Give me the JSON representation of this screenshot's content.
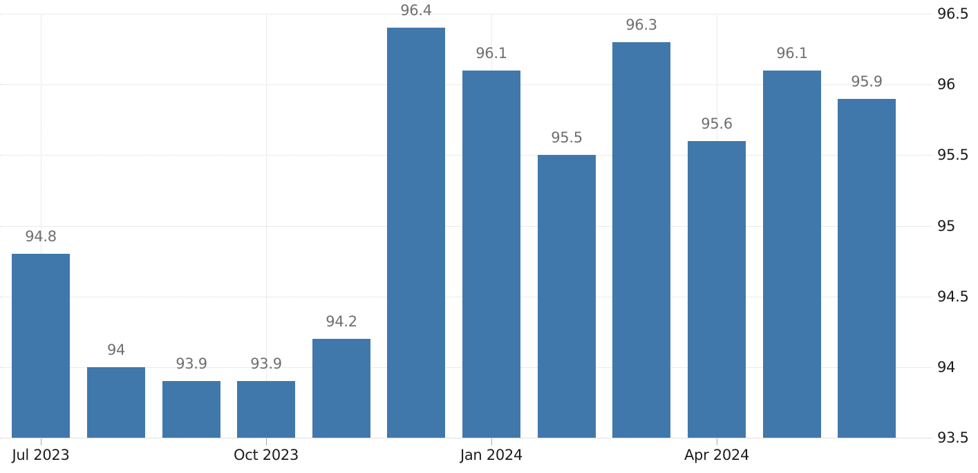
{
  "chart_data": {
    "type": "bar",
    "values": [
      94.8,
      94,
      93.9,
      93.9,
      94.2,
      96.4,
      96.1,
      95.5,
      96.3,
      95.6,
      96.1,
      95.9
    ],
    "bar_value_labels": [
      "94.8",
      "94",
      "93.9",
      "93.9",
      "94.2",
      "96.4",
      "96.1",
      "95.5",
      "96.3",
      "95.6",
      "96.1",
      "95.9"
    ],
    "x_tick_labels": [
      "Jul 2023",
      "Oct 2023",
      "Jan 2024",
      "Apr 2024"
    ],
    "x_tick_bar_indices": [
      0,
      3,
      6,
      9
    ],
    "y_tick_labels": [
      "96.5",
      "96",
      "95.5",
      "95",
      "94.5",
      "94",
      "93.5"
    ],
    "y_tick_values": [
      96.5,
      96,
      95.5,
      95,
      94.5,
      94,
      93.5
    ],
    "ylim": [
      93.5,
      96.5
    ],
    "y_axis_side": "right",
    "grid": "dotted",
    "title": "",
    "xlabel": "",
    "ylabel": "",
    "legend": null,
    "colors": {
      "bar": "#4178ab",
      "value_label": "#6f6f6f",
      "value_label_inside_bar": "#5e6d7d",
      "axis_label": "#1c1c1c",
      "gridline": "#d6d6d6",
      "baseline": "#c3c3c3",
      "tick": "#a9a9a9",
      "background": "#ffffff"
    }
  }
}
